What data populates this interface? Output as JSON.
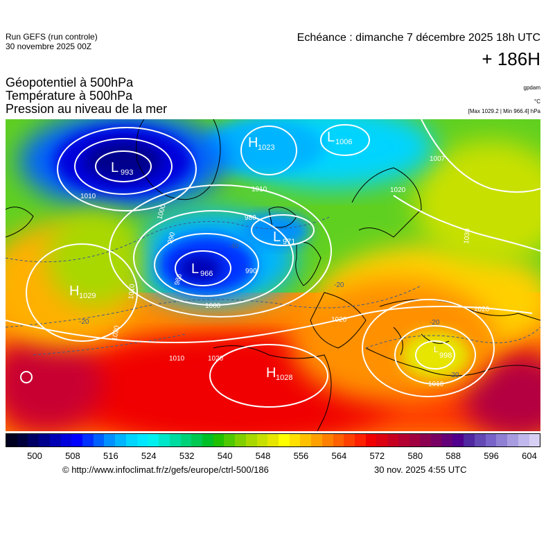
{
  "header": {
    "run_line1": "Run GEFS (run controle)",
    "run_line2": "30 novembre 2025 00Z",
    "echeance": "Echéance : dimanche 7 décembre 2025 18h UTC",
    "lead": "+ 186H"
  },
  "titles": {
    "line1": "Géopotentiel à 500hPa",
    "line2": "Température à 500hPa",
    "line3": "Pression au niveau de la mer"
  },
  "units": {
    "gpdam": "gpdam",
    "celsius": "°C",
    "pressure": "[Max 1029.2 | Min 966.4] hPa"
  },
  "map_labels": {
    "high_greenland": "H",
    "high_greenland_value": "1023",
    "low_greenland_sea": "L",
    "low_greenland_sea_value": "1006",
    "low_labrador": "L",
    "low_labrador_value": "993",
    "low_atlantic": "L",
    "low_atlantic_value": "966",
    "low_scotland": "L",
    "low_scotland_value": "971",
    "high_azores_west": "H",
    "high_azores_west_value": "1029",
    "high_azores": "H",
    "high_azores_value": "1028",
    "low_greece": "L",
    "low_greece_value": "998",
    "isobars": [
      "1010",
      "1000",
      "990",
      "980",
      "986",
      "1010",
      "1020",
      "1000",
      "990",
      "1010",
      "1020",
      "1010",
      "1020",
      "1020",
      "1030",
      "1007",
      "1020",
      "1010"
    ],
    "temp_labels": [
      "-20",
      "-20",
      "-40",
      "-20",
      "-20"
    ]
  },
  "colors": {
    "scale": [
      "#000020",
      "#00003c",
      "#000064",
      "#00008c",
      "#0000b4",
      "#0000dc",
      "#0000ff",
      "#0030ff",
      "#0060ff",
      "#0090ff",
      "#00b4ff",
      "#00d4ff",
      "#00e6ff",
      "#00f0f0",
      "#00e6c8",
      "#00dca0",
      "#00d278",
      "#00c850",
      "#00c028",
      "#20c000",
      "#50c800",
      "#80d000",
      "#a8d800",
      "#c8e000",
      "#e6e600",
      "#ffff00",
      "#ffe000",
      "#ffc000",
      "#ffa000",
      "#ff8000",
      "#ff6000",
      "#ff4000",
      "#ff2000",
      "#f00000",
      "#dc0010",
      "#c80020",
      "#b40030",
      "#a00040",
      "#8c0050",
      "#780064",
      "#640078",
      "#50008c",
      "#5028a0",
      "#6448b4",
      "#7864c8",
      "#9080d4",
      "#a89ce0",
      "#c0b8ec",
      "#d8d0f4"
    ],
    "isobar": "#ffffff"
  },
  "scale_ticks": [
    "500",
    "508",
    "516",
    "524",
    "532",
    "540",
    "548",
    "556",
    "564",
    "572",
    "580",
    "588",
    "596",
    "604"
  ],
  "footer": {
    "source": "© http://www.infoclimat.fr/z/gefs/europe/ctrl-500/186",
    "timestamp": "30 nov. 2025  4:55 UTC"
  }
}
